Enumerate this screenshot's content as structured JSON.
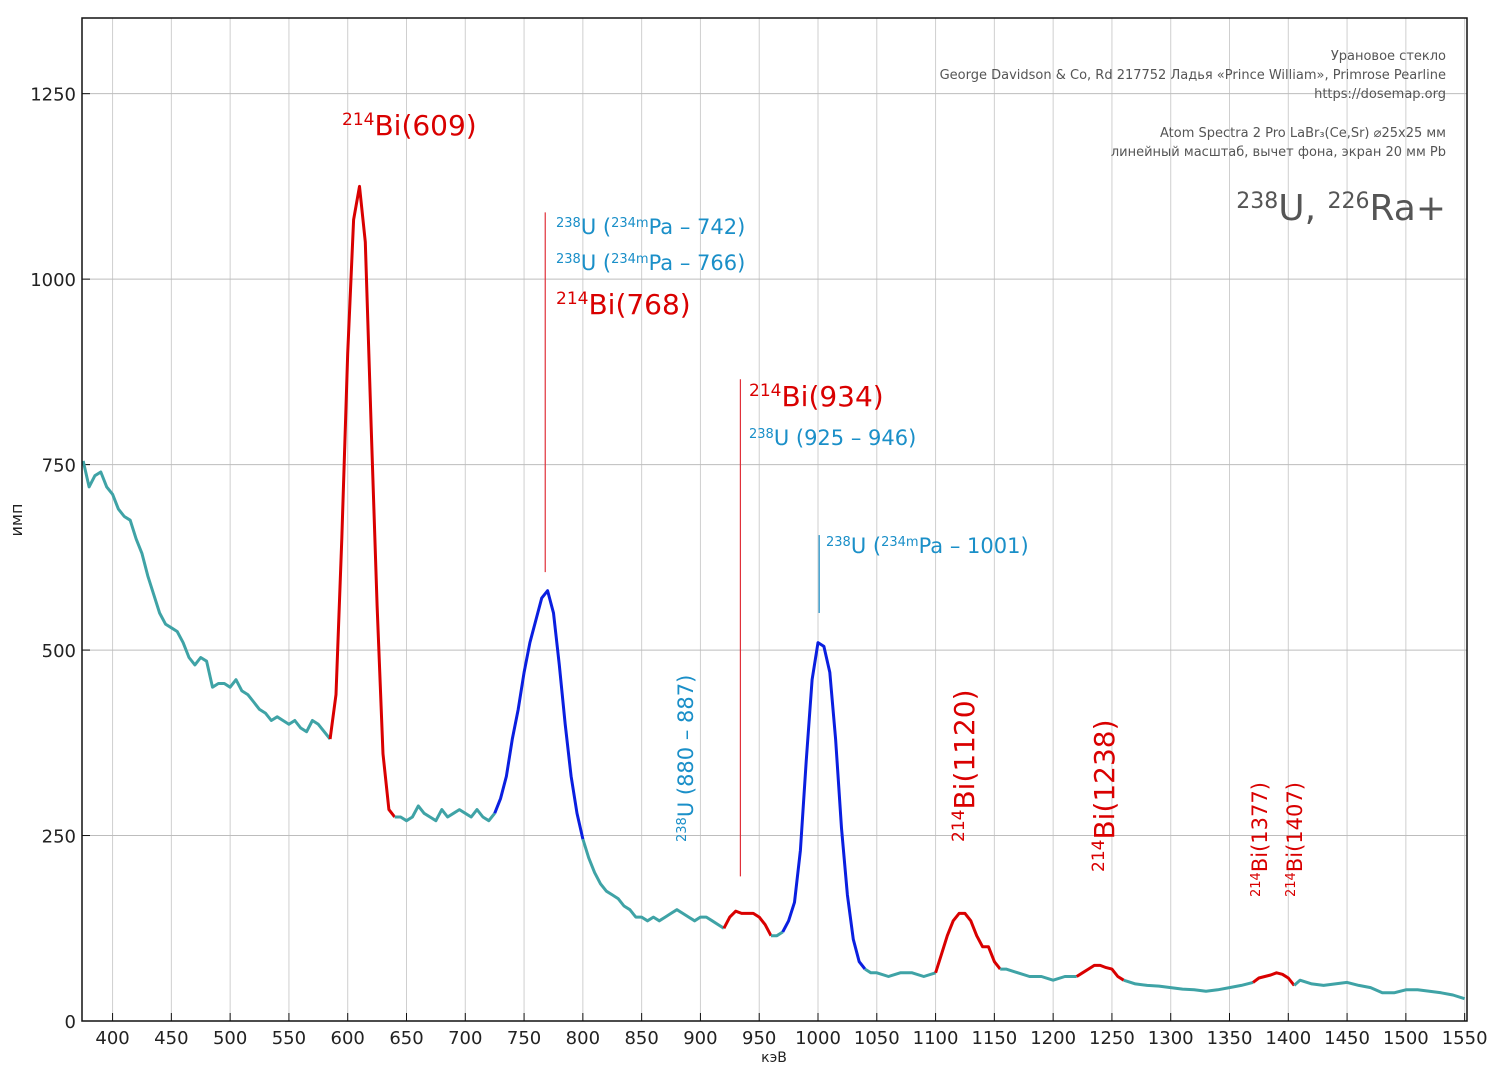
{
  "chart_data": {
    "type": "line",
    "header_lines": [
      "Урановое стекло",
      "George Davidson & Co, Rd 217752 Ладья «Prince William», Primrose Pearline",
      "https://dosemap.org",
      "Atom Spectra 2 Pro LaBr₃(Ce,Sr) ⌀25x25 мм",
      "линейный масштаб, вычет фона, экран 20 мм Pb"
    ],
    "title_parts": [
      {
        "text": "238",
        "sup": true
      },
      {
        "text": "U, "
      },
      {
        "text": "226",
        "sup": true
      },
      {
        "text": "Ra+"
      }
    ],
    "xlabel": "кэВ",
    "ylabel": "имп",
    "xlim": [
      374,
      1552
    ],
    "ylim": [
      0,
      1352
    ],
    "xticks": [
      400,
      450,
      500,
      550,
      600,
      650,
      700,
      750,
      800,
      850,
      900,
      950,
      1000,
      1050,
      1100,
      1150,
      1200,
      1250,
      1300,
      1350,
      1400,
      1450,
      1500,
      1550
    ],
    "yticks": [
      0,
      250,
      500,
      750,
      1000,
      1250
    ],
    "grid": true,
    "series": [
      {
        "color": "#3fa3a6",
        "x": [
          375,
          380,
          385,
          390,
          395,
          400,
          405,
          410,
          415,
          420,
          425,
          430,
          435,
          440,
          445,
          450,
          455,
          460,
          465,
          470,
          475,
          480,
          485,
          490,
          495,
          500,
          505,
          510,
          515,
          520,
          525,
          530,
          535,
          540,
          545,
          550,
          555,
          560,
          565,
          570,
          575,
          580,
          585
        ],
        "values": [
          755,
          720,
          735,
          740,
          720,
          710,
          690,
          680,
          675,
          650,
          630,
          600,
          575,
          550,
          535,
          530,
          525,
          510,
          490,
          480,
          490,
          485,
          450,
          455,
          455,
          450,
          460,
          445,
          440,
          430,
          420,
          415,
          405,
          410,
          405,
          400,
          405,
          395,
          390,
          405,
          400,
          390,
          380
        ]
      },
      {
        "color": "#d90000",
        "x": [
          585,
          590,
          595,
          600,
          605,
          610,
          615,
          620,
          625,
          630,
          635,
          640
        ],
        "values": [
          380,
          440,
          650,
          900,
          1080,
          1125,
          1050,
          800,
          560,
          360,
          285,
          275
        ]
      },
      {
        "color": "#3fa3a6",
        "x": [
          640,
          645,
          650,
          655,
          660,
          665,
          670,
          675,
          680,
          685,
          690,
          695,
          700,
          705,
          710,
          715,
          720,
          725
        ],
        "values": [
          275,
          275,
          270,
          275,
          290,
          280,
          275,
          270,
          285,
          275,
          280,
          285,
          280,
          275,
          285,
          275,
          270,
          280
        ]
      },
      {
        "color": "#0a1fe0",
        "x": [
          725,
          730,
          735,
          740,
          745,
          750,
          755,
          760,
          765,
          770,
          775,
          780,
          785,
          790,
          795,
          800
        ],
        "values": [
          280,
          300,
          330,
          380,
          420,
          470,
          510,
          540,
          570,
          580,
          550,
          480,
          400,
          330,
          280,
          245
        ]
      },
      {
        "color": "#3fa3a6",
        "x": [
          800,
          805,
          810,
          815,
          820,
          825,
          830,
          835,
          840,
          845,
          850,
          855,
          860,
          865,
          870,
          875,
          880,
          885,
          890,
          895,
          900,
          905,
          910,
          915,
          920
        ],
        "values": [
          245,
          220,
          200,
          185,
          175,
          170,
          165,
          155,
          150,
          140,
          140,
          135,
          140,
          135,
          140,
          145,
          150,
          145,
          140,
          135,
          140,
          140,
          135,
          130,
          125
        ]
      },
      {
        "color": "#d90000",
        "x": [
          920,
          925,
          930,
          935,
          940,
          945,
          950,
          955,
          960
        ],
        "values": [
          125,
          140,
          148,
          145,
          145,
          145,
          140,
          130,
          115
        ]
      },
      {
        "color": "#3fa3a6",
        "x": [
          960,
          965,
          970
        ],
        "values": [
          115,
          115,
          120
        ]
      },
      {
        "color": "#0a1fe0",
        "x": [
          970,
          975,
          980,
          985,
          990,
          995,
          1000,
          1005,
          1010,
          1015,
          1020,
          1025,
          1030,
          1035,
          1040
        ],
        "values": [
          120,
          135,
          160,
          230,
          350,
          460,
          510,
          505,
          470,
          380,
          260,
          170,
          110,
          80,
          70
        ]
      },
      {
        "color": "#3fa3a6",
        "x": [
          1040,
          1045,
          1050,
          1060,
          1070,
          1080,
          1090,
          1100
        ],
        "values": [
          70,
          65,
          65,
          60,
          65,
          65,
          60,
          65
        ]
      },
      {
        "color": "#d90000",
        "x": [
          1100,
          1105,
          1110,
          1115,
          1120,
          1125,
          1130,
          1135,
          1140,
          1145,
          1150,
          1155
        ],
        "values": [
          65,
          90,
          115,
          135,
          145,
          145,
          135,
          115,
          100,
          100,
          80,
          70
        ]
      },
      {
        "color": "#3fa3a6",
        "x": [
          1155,
          1160,
          1170,
          1180,
          1190,
          1200,
          1210,
          1220
        ],
        "values": [
          70,
          70,
          65,
          60,
          60,
          55,
          60,
          60
        ]
      },
      {
        "color": "#d90000",
        "x": [
          1220,
          1225,
          1230,
          1235,
          1240,
          1245,
          1250,
          1255,
          1260
        ],
        "values": [
          60,
          65,
          70,
          75,
          75,
          72,
          70,
          60,
          55
        ]
      },
      {
        "color": "#3fa3a6",
        "x": [
          1260,
          1270,
          1280,
          1290,
          1300,
          1310,
          1320,
          1330,
          1340,
          1350,
          1360,
          1370
        ],
        "values": [
          55,
          50,
          48,
          47,
          45,
          43,
          42,
          40,
          42,
          45,
          48,
          52
        ]
      },
      {
        "color": "#d90000",
        "x": [
          1370,
          1375,
          1380,
          1385,
          1390,
          1395,
          1400,
          1405
        ],
        "values": [
          52,
          58,
          60,
          62,
          65,
          63,
          58,
          48
        ]
      },
      {
        "color": "#3fa3a6",
        "x": [
          1405,
          1410,
          1420,
          1430,
          1440,
          1450,
          1460,
          1470,
          1480,
          1490,
          1500,
          1510,
          1520,
          1530,
          1540,
          1550
        ],
        "values": [
          48,
          55,
          50,
          48,
          50,
          52,
          48,
          45,
          38,
          38,
          42,
          42,
          40,
          38,
          35,
          30
        ]
      }
    ],
    "markers": [
      {
        "x": 768,
        "y": [
          605,
          1090
        ],
        "color": "#e0303a"
      },
      {
        "x": 934,
        "y": [
          195,
          865
        ],
        "color": "#e0303a"
      },
      {
        "x": 1001,
        "y": [
          550,
          655
        ],
        "color": "#1a8fc8"
      }
    ],
    "annotations": [
      {
        "color": "#d90000",
        "parts": [
          {
            "text": "214",
            "sup": true
          },
          {
            "text": "Bi(609)"
          }
        ]
      },
      {
        "color": "#1a8fc8",
        "parts": [
          {
            "text": "238",
            "sup": true
          },
          {
            "text": "U ("
          },
          {
            "text": "234m",
            "sup": true
          },
          {
            "text": "Pa – 742)"
          }
        ]
      },
      {
        "color": "#1a8fc8",
        "parts": [
          {
            "text": "238",
            "sup": true
          },
          {
            "text": "U ("
          },
          {
            "text": "234m",
            "sup": true
          },
          {
            "text": "Pa – 766)"
          }
        ]
      },
      {
        "color": "#d90000",
        "parts": [
          {
            "text": "214",
            "sup": true
          },
          {
            "text": "Bi(768)"
          }
        ]
      },
      {
        "color": "#d90000",
        "parts": [
          {
            "text": "214",
            "sup": true
          },
          {
            "text": "Bi(934)"
          }
        ]
      },
      {
        "color": "#1a8fc8",
        "parts": [
          {
            "text": "238",
            "sup": true
          },
          {
            "text": "U (925 – 946)"
          }
        ]
      },
      {
        "color": "#1a8fc8",
        "parts": [
          {
            "text": "238",
            "sup": true
          },
          {
            "text": "U ("
          },
          {
            "text": "234m",
            "sup": true
          },
          {
            "text": "Pa – 1001)"
          }
        ]
      },
      {
        "color": "#1a8fc8",
        "parts": [
          {
            "text": "238",
            "sup": true
          },
          {
            "text": "U (880 – 887)"
          }
        ]
      },
      {
        "color": "#d90000",
        "parts": [
          {
            "text": "214",
            "sup": true
          },
          {
            "text": "Bi(1120)"
          }
        ]
      },
      {
        "color": "#d90000",
        "parts": [
          {
            "text": "214",
            "sup": true
          },
          {
            "text": "Bi(1238)"
          }
        ]
      },
      {
        "color": "#d90000",
        "parts": [
          {
            "text": "214",
            "sup": true
          },
          {
            "text": "Bi(1377)"
          }
        ]
      },
      {
        "color": "#d90000",
        "parts": [
          {
            "text": "214",
            "sup": true
          },
          {
            "text": "Bi(1407)"
          }
        ]
      }
    ]
  }
}
